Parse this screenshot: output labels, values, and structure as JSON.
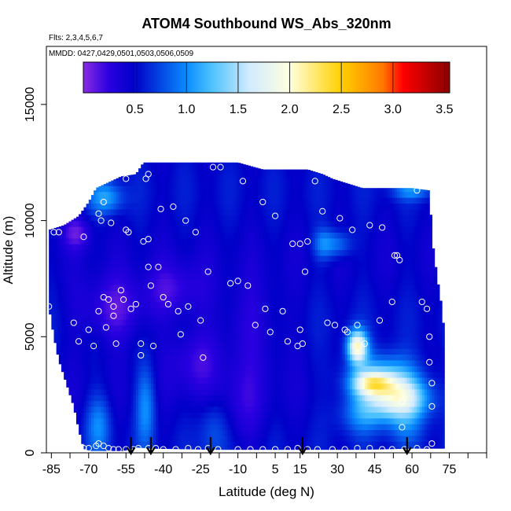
{
  "chart_data": {
    "type": "heatmap",
    "title": "ATOM4 Southbound WS_Abs_320nm",
    "flights_note": "Flts: 2,3,4,5,6,7",
    "dates_note": "MMDD: 0427,0429,0501,0503,0506,0509",
    "xlabel": "Latitude (deg N)",
    "ylabel": "Altitude (m)",
    "xlim": [
      -87,
      90
    ],
    "ylim": [
      0,
      17500
    ],
    "x_ticks": [
      -85,
      -70,
      -55,
      -40,
      -25,
      -10,
      5,
      15,
      30,
      45,
      60,
      75
    ],
    "x_tick_labels": [
      "-85",
      "-70",
      "-55",
      "-40",
      "-25",
      "-10",
      "5",
      "15",
      "30",
      "45",
      "60",
      "75"
    ],
    "y_ticks": [
      0,
      5000,
      10000,
      15000
    ],
    "y_tick_labels": [
      "0",
      "5000",
      "10000",
      "15000"
    ],
    "colorbar": {
      "min": 0,
      "max": 3.55,
      "ticks": [
        0.5,
        1.0,
        1.5,
        2.0,
        2.5,
        3.0,
        3.5
      ],
      "tick_labels": [
        "0.5",
        "1.0",
        "1.5",
        "2.0",
        "2.5",
        "3.0",
        "3.5"
      ],
      "divisions": [
        0,
        0.5,
        1.0,
        1.5,
        2.0,
        2.5,
        3.0,
        3.5
      ],
      "stops": [
        {
          "v": 0.0,
          "c": "#8a2be2"
        },
        {
          "v": 0.25,
          "c": "#2a00e0"
        },
        {
          "v": 0.5,
          "c": "#0000c8"
        },
        {
          "v": 1.0,
          "c": "#0a8cff"
        },
        {
          "v": 1.25,
          "c": "#4fc3ff"
        },
        {
          "v": 1.6,
          "c": "#cfeaff"
        },
        {
          "v": 2.0,
          "c": "#ffffe0"
        },
        {
          "v": 2.5,
          "c": "#ffd000"
        },
        {
          "v": 2.9,
          "c": "#ff7a00"
        },
        {
          "v": 3.1,
          "c": "#ff0000"
        },
        {
          "v": 3.55,
          "c": "#8b0000"
        }
      ]
    },
    "field": {
      "lat_start": -86,
      "lat_end": 73,
      "lat_step": 1,
      "alt_step": 250,
      "envelope_top": [
        [
          -86,
          9600
        ],
        [
          -80,
          9800
        ],
        [
          -74,
          10200
        ],
        [
          -70,
          10800
        ],
        [
          -67,
          11400
        ],
        [
          -57,
          11900
        ],
        [
          -51,
          12000
        ],
        [
          -48,
          12500
        ],
        [
          -30,
          12500
        ],
        [
          -10,
          12500
        ],
        [
          0,
          12200
        ],
        [
          5,
          12200
        ],
        [
          18,
          12200
        ],
        [
          24,
          12000
        ],
        [
          28,
          11800
        ],
        [
          40,
          11400
        ],
        [
          60,
          11400
        ],
        [
          67,
          11300
        ],
        [
          68,
          9200
        ],
        [
          70,
          7600
        ],
        [
          72,
          6200
        ],
        [
          73,
          5000
        ]
      ],
      "envelope_bottom": [
        [
          -86,
          6300
        ],
        [
          -84,
          5000
        ],
        [
          -82,
          4000
        ],
        [
          -79,
          3000
        ],
        [
          -76,
          2000
        ],
        [
          -74,
          1000
        ],
        [
          -72,
          200
        ],
        [
          -70,
          100
        ],
        [
          -56,
          100
        ],
        [
          -51,
          250
        ],
        [
          -45,
          200
        ],
        [
          -20,
          150
        ],
        [
          0,
          150
        ],
        [
          20,
          150
        ],
        [
          40,
          150
        ],
        [
          60,
          200
        ],
        [
          73,
          200
        ]
      ],
      "hotspots": [
        {
          "lat": 55,
          "alt": 2300,
          "dlat": 12,
          "dalt": 900,
          "v": 1.7
        },
        {
          "lat": 48,
          "alt": 3300,
          "dlat": 14,
          "dalt": 1000,
          "v": 1.2
        },
        {
          "lat": 38,
          "alt": 4600,
          "dlat": 4,
          "dalt": 700,
          "v": 1.9
        },
        {
          "lat": 44,
          "alt": 3000,
          "dlat": 8,
          "dalt": 500,
          "v": 1.4
        },
        {
          "lat": 40,
          "alt": 1700,
          "dlat": 10,
          "dalt": 900,
          "v": 0.9
        },
        {
          "lat": 30,
          "alt": 9000,
          "dlat": 6,
          "dalt": 600,
          "v": 0.9
        },
        {
          "lat": 58,
          "alt": 1000,
          "dlat": 8,
          "dalt": 800,
          "v": 0.7
        },
        {
          "lat": -63,
          "alt": 11000,
          "dlat": 7,
          "dalt": 700,
          "v": 1.0
        },
        {
          "lat": -66,
          "alt": 1200,
          "dlat": 5,
          "dalt": 1300,
          "v": 0.9
        },
        {
          "lat": -47,
          "alt": 2000,
          "dlat": 4,
          "dalt": 1800,
          "v": 0.95
        },
        {
          "lat": -20,
          "alt": 1000,
          "dlat": 6,
          "dalt": 1400,
          "v": 0.75
        },
        {
          "lat": 60,
          "alt": 11300,
          "dlat": 8,
          "dalt": 400,
          "v": 0.9
        },
        {
          "lat": 24,
          "alt": 9000,
          "dlat": 4,
          "dalt": 700,
          "v": 0.8
        }
      ],
      "lowspots": [
        {
          "lat": -60,
          "alt": 6200,
          "dlat": 14,
          "dalt": 1400,
          "v": 0.12
        },
        {
          "lat": -35,
          "alt": 7000,
          "dlat": 12,
          "dalt": 1200,
          "v": 0.2
        },
        {
          "lat": -28,
          "alt": 4000,
          "dlat": 10,
          "dalt": 1500,
          "v": 0.22
        },
        {
          "lat": -5,
          "alt": 5500,
          "dlat": 14,
          "dalt": 2000,
          "v": 0.28
        },
        {
          "lat": -75,
          "alt": 9500,
          "dlat": 6,
          "dalt": 700,
          "v": 0.15
        },
        {
          "lat": -8,
          "alt": 2000,
          "dlat": 10,
          "dalt": 1800,
          "v": 0.3
        }
      ]
    },
    "sample_points": [
      [
        -86,
        6300
      ],
      [
        -84,
        9500
      ],
      [
        -82,
        9500
      ],
      [
        -76,
        5600
      ],
      [
        -74,
        4800
      ],
      [
        -72,
        9300
      ],
      [
        -70,
        5300
      ],
      [
        -68,
        4600
      ],
      [
        -66,
        6100
      ],
      [
        -66,
        10300
      ],
      [
        -65,
        10000
      ],
      [
        -64,
        10800
      ],
      [
        -64,
        6700
      ],
      [
        -63,
        5400
      ],
      [
        -62,
        6600
      ],
      [
        -61,
        9900
      ],
      [
        -60,
        6300
      ],
      [
        -60,
        5900
      ],
      [
        -59,
        4700
      ],
      [
        -57,
        7000
      ],
      [
        -56,
        6600
      ],
      [
        -55,
        11800
      ],
      [
        -55,
        9600
      ],
      [
        -54,
        9500
      ],
      [
        -53,
        6200
      ],
      [
        -51,
        6400
      ],
      [
        -49,
        4700
      ],
      [
        -49,
        4200
      ],
      [
        -48,
        9100
      ],
      [
        -47,
        11800
      ],
      [
        -46,
        12000
      ],
      [
        -46,
        9200
      ],
      [
        -46,
        8000
      ],
      [
        -45,
        7200
      ],
      [
        -44,
        4600
      ],
      [
        -42,
        8000
      ],
      [
        -41,
        10500
      ],
      [
        -40,
        6700
      ],
      [
        -38,
        6400
      ],
      [
        -36,
        10600
      ],
      [
        -34,
        6100
      ],
      [
        -33,
        5100
      ],
      [
        -31,
        10000
      ],
      [
        -30,
        6300
      ],
      [
        -27,
        9500
      ],
      [
        -25,
        5700
      ],
      [
        -24,
        4100
      ],
      [
        -22,
        7800
      ],
      [
        -20,
        12300
      ],
      [
        -17,
        12300
      ],
      [
        -13,
        7300
      ],
      [
        -10,
        7400
      ],
      [
        -8,
        11700
      ],
      [
        -6,
        7200
      ],
      [
        -3,
        5500
      ],
      [
        0,
        10800
      ],
      [
        1,
        6200
      ],
      [
        3,
        5200
      ],
      [
        5,
        10200
      ],
      [
        8,
        6100
      ],
      [
        10,
        4800
      ],
      [
        12,
        9000
      ],
      [
        14,
        4600
      ],
      [
        15,
        5300
      ],
      [
        15,
        9000
      ],
      [
        16,
        4700
      ],
      [
        17,
        7800
      ],
      [
        18,
        9100
      ],
      [
        21,
        11700
      ],
      [
        24,
        10400
      ],
      [
        26,
        5600
      ],
      [
        29,
        5500
      ],
      [
        31,
        10100
      ],
      [
        33,
        5300
      ],
      [
        34,
        5200
      ],
      [
        36,
        9600
      ],
      [
        38,
        5500
      ],
      [
        41,
        4700
      ],
      [
        43,
        9800
      ],
      [
        47,
        5700
      ],
      [
        48,
        9700
      ],
      [
        52,
        6500
      ],
      [
        53,
        8500
      ],
      [
        54,
        8500
      ],
      [
        55,
        8300
      ],
      [
        56,
        2200
      ],
      [
        56,
        1100
      ],
      [
        62,
        11300
      ],
      [
        64,
        6500
      ],
      [
        66,
        6200
      ],
      [
        67,
        5000
      ],
      [
        67,
        3900
      ],
      [
        68,
        3000
      ],
      [
        68,
        2000
      ],
      [
        -72,
        200
      ],
      [
        -70,
        200
      ],
      [
        -67,
        300
      ],
      [
        -66,
        400
      ],
      [
        -64,
        300
      ],
      [
        -62,
        200
      ],
      [
        -60,
        150
      ],
      [
        -58,
        150
      ],
      [
        -55,
        150
      ],
      [
        -52,
        150
      ],
      [
        -50,
        200
      ],
      [
        -46,
        200
      ],
      [
        -43,
        200
      ],
      [
        -40,
        150
      ],
      [
        -35,
        150
      ],
      [
        -30,
        200
      ],
      [
        -26,
        150
      ],
      [
        -22,
        200
      ],
      [
        -18,
        150
      ],
      [
        -10,
        150
      ],
      [
        -5,
        150
      ],
      [
        0,
        150
      ],
      [
        5,
        150
      ],
      [
        10,
        150
      ],
      [
        14,
        200
      ],
      [
        18,
        150
      ],
      [
        22,
        150
      ],
      [
        28,
        150
      ],
      [
        33,
        150
      ],
      [
        38,
        200
      ],
      [
        43,
        200
      ],
      [
        48,
        150
      ],
      [
        52,
        150
      ],
      [
        57,
        150
      ],
      [
        62,
        200
      ],
      [
        66,
        150
      ],
      [
        68,
        400
      ]
    ],
    "arrow_markers": [
      -53,
      -45,
      -21,
      16,
      58
    ]
  }
}
